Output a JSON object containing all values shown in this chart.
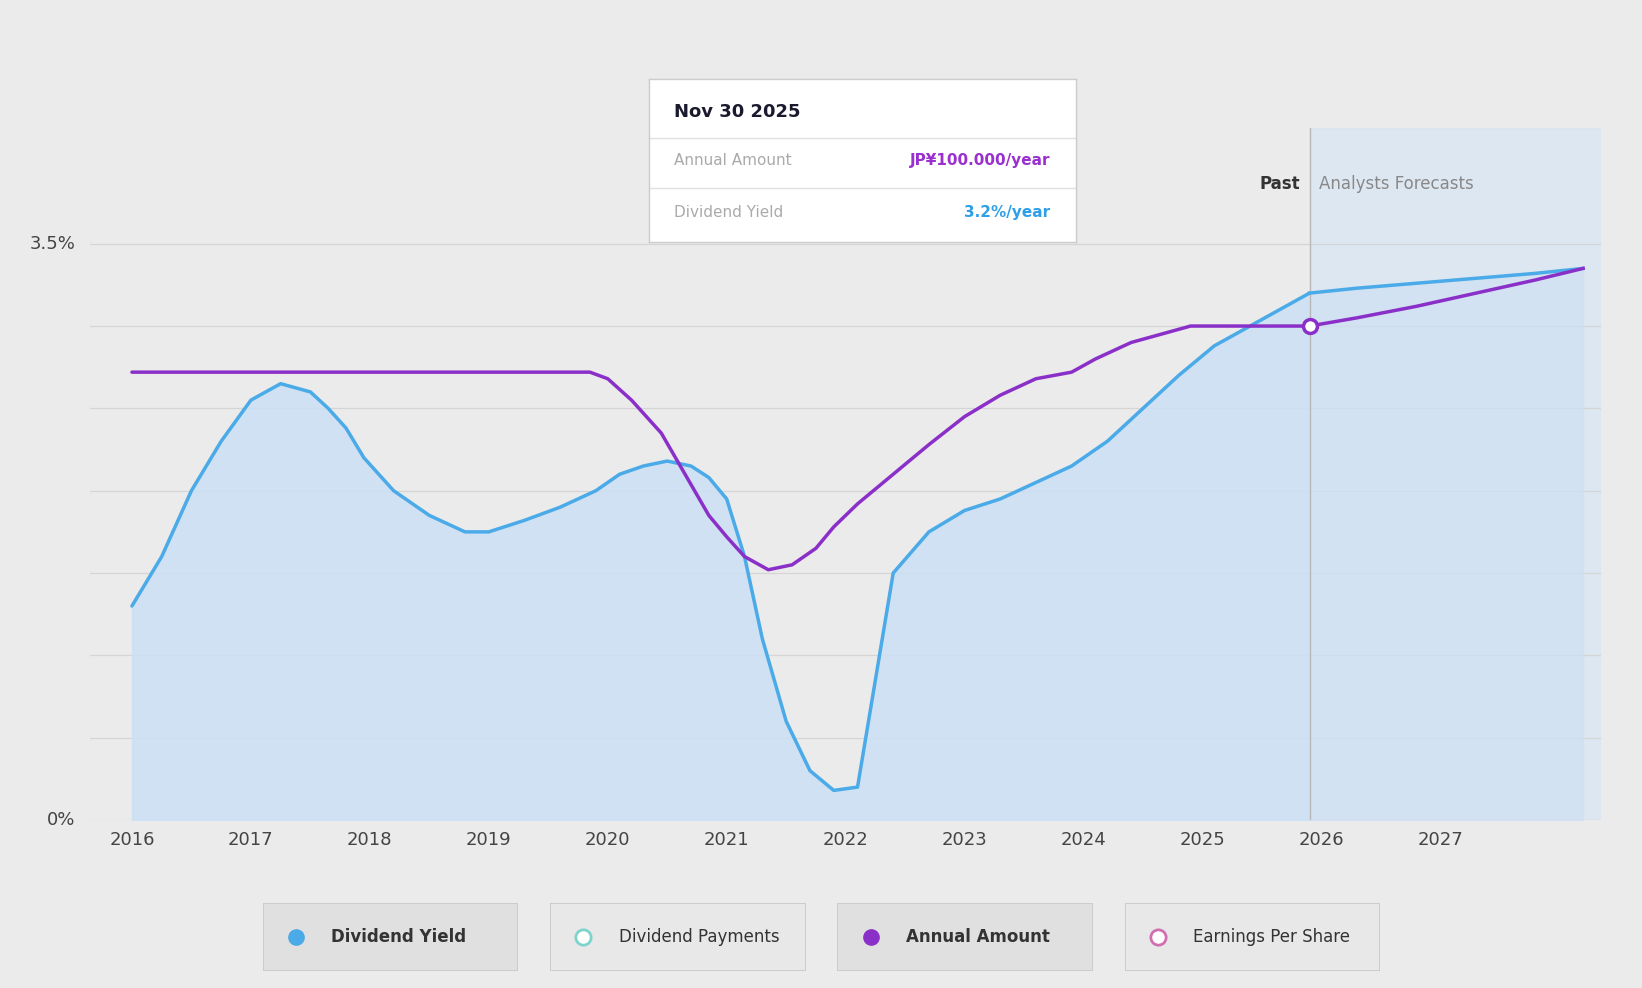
{
  "bg_color": "#ebebeb",
  "plot_bg_color": "#ebebeb",
  "x_ticks": [
    2016,
    2017,
    2018,
    2019,
    2020,
    2021,
    2022,
    2023,
    2024,
    2025,
    2026,
    2027
  ],
  "forecast_start": 2025.9,
  "tooltip_title": "Nov 30 2025",
  "tooltip_row1_label": "Annual Amount",
  "tooltip_row1_value": "JP¥100.000/year",
  "tooltip_row1_color": "#9b30d0",
  "tooltip_row2_label": "Dividend Yield",
  "tooltip_row2_value": "3.2%/year",
  "tooltip_row2_color": "#2e9fe8",
  "past_label": "Past",
  "forecast_label": "Analysts Forecasts",
  "dividend_yield_color": "#4baae8",
  "dividend_yield_fill": "#cde0f5",
  "annual_amount_color": "#8b2fc9",
  "grid_color": "#d5d5d5",
  "dividend_yield_x": [
    2016.0,
    2016.25,
    2016.5,
    2016.75,
    2017.0,
    2017.25,
    2017.5,
    2017.65,
    2017.8,
    2017.95,
    2018.2,
    2018.5,
    2018.8,
    2019.0,
    2019.3,
    2019.6,
    2019.9,
    2020.1,
    2020.3,
    2020.5,
    2020.7,
    2020.85,
    2021.0,
    2021.15,
    2021.3,
    2021.5,
    2021.7,
    2021.9,
    2022.1,
    2022.4,
    2022.7,
    2023.0,
    2023.3,
    2023.6,
    2023.9,
    2024.2,
    2024.5,
    2024.8,
    2025.1,
    2025.4,
    2025.7,
    2025.9
  ],
  "dividend_yield_y": [
    1.3,
    1.6,
    2.0,
    2.3,
    2.55,
    2.65,
    2.6,
    2.5,
    2.38,
    2.2,
    2.0,
    1.85,
    1.75,
    1.75,
    1.82,
    1.9,
    2.0,
    2.1,
    2.15,
    2.18,
    2.15,
    2.08,
    1.95,
    1.6,
    1.1,
    0.6,
    0.3,
    0.18,
    0.2,
    1.5,
    1.75,
    1.88,
    1.95,
    2.05,
    2.15,
    2.3,
    2.5,
    2.7,
    2.88,
    3.0,
    3.12,
    3.2
  ],
  "dividend_yield_forecast_x": [
    2025.9,
    2026.3,
    2026.8,
    2027.3,
    2027.8,
    2028.2
  ],
  "dividend_yield_forecast_y": [
    3.2,
    3.23,
    3.26,
    3.29,
    3.32,
    3.35
  ],
  "annual_amount_x": [
    2016.0,
    2016.5,
    2017.0,
    2017.5,
    2018.0,
    2018.5,
    2019.0,
    2019.5,
    2019.85,
    2020.0,
    2020.2,
    2020.45,
    2020.65,
    2020.85,
    2021.0,
    2021.15,
    2021.35,
    2021.55,
    2021.75,
    2021.9,
    2022.1,
    2022.4,
    2022.7,
    2023.0,
    2023.3,
    2023.6,
    2023.9,
    2024.1,
    2024.4,
    2024.65,
    2024.9,
    2025.1,
    2025.4,
    2025.7,
    2025.9
  ],
  "annual_amount_y": [
    2.72,
    2.72,
    2.72,
    2.72,
    2.72,
    2.72,
    2.72,
    2.72,
    2.72,
    2.68,
    2.55,
    2.35,
    2.1,
    1.85,
    1.72,
    1.6,
    1.52,
    1.55,
    1.65,
    1.78,
    1.92,
    2.1,
    2.28,
    2.45,
    2.58,
    2.68,
    2.72,
    2.8,
    2.9,
    2.95,
    3.0,
    3.0,
    3.0,
    3.0,
    3.0
  ],
  "annual_amount_forecast_x": [
    2025.9,
    2026.3,
    2026.8,
    2027.3,
    2027.8,
    2028.2
  ],
  "annual_amount_forecast_y": [
    3.0,
    3.05,
    3.12,
    3.2,
    3.28,
    3.35
  ],
  "dot_x": 2025.9,
  "dot_y": 3.0,
  "ylim": [
    0,
    4.2
  ],
  "xlim": [
    2015.65,
    2028.35
  ],
  "legend_items": [
    {
      "label": "Dividend Yield",
      "color": "#4baae8",
      "filled": true
    },
    {
      "label": "Dividend Payments",
      "color": "#7dd4cc",
      "filled": false
    },
    {
      "label": "Annual Amount",
      "color": "#8b2fc9",
      "filled": true
    },
    {
      "label": "Earnings Per Share",
      "color": "#d070b0",
      "filled": false
    }
  ]
}
